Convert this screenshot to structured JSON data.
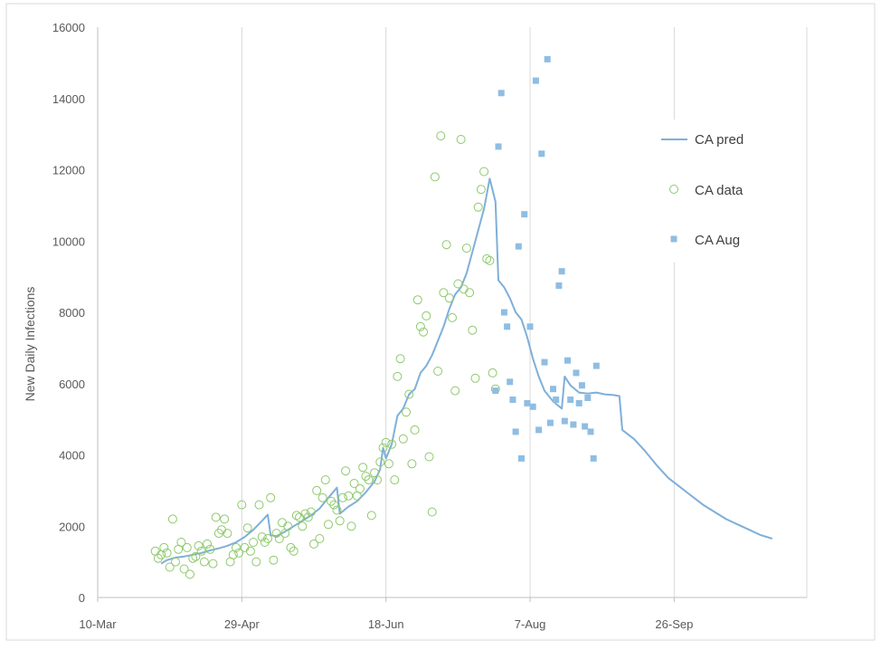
{
  "chart_data": {
    "type": "line+scatter",
    "title": "",
    "xlabel": "",
    "ylabel": "New Daily Infections",
    "xlim": [
      "2020-03-10",
      "2020-11-11"
    ],
    "ylim": [
      0,
      16000
    ],
    "x_tick_labels": [
      "10-Mar",
      "29-Apr",
      "18-Jun",
      "7-Aug",
      "26-Sep"
    ],
    "x_tick_dates": [
      "2020-03-10",
      "2020-04-29",
      "2020-06-18",
      "2020-08-07",
      "2020-09-26"
    ],
    "y_ticks": [
      0,
      2000,
      4000,
      6000,
      8000,
      10000,
      12000,
      14000,
      16000
    ],
    "grid": "vertical",
    "legend_position": "right",
    "colors": {
      "pred": "#7fafd9",
      "data": "#8dc96b",
      "aug": "#8fbde3"
    },
    "series": [
      {
        "name": "CA pred",
        "kind": "line",
        "points": [
          [
            "2020-04-01",
            950
          ],
          [
            "2020-04-03",
            1050
          ],
          [
            "2020-04-06",
            1120
          ],
          [
            "2020-04-09",
            1150
          ],
          [
            "2020-04-12",
            1200
          ],
          [
            "2020-04-15",
            1250
          ],
          [
            "2020-04-18",
            1320
          ],
          [
            "2020-04-21",
            1380
          ],
          [
            "2020-04-24",
            1450
          ],
          [
            "2020-04-27",
            1550
          ],
          [
            "2020-04-30",
            1700
          ],
          [
            "2020-05-03",
            1900
          ],
          [
            "2020-05-06",
            2150
          ],
          [
            "2020-05-08",
            2320
          ],
          [
            "2020-05-09",
            1750
          ],
          [
            "2020-05-11",
            1720
          ],
          [
            "2020-05-14",
            1850
          ],
          [
            "2020-05-17",
            2000
          ],
          [
            "2020-05-20",
            2150
          ],
          [
            "2020-05-23",
            2300
          ],
          [
            "2020-05-26",
            2500
          ],
          [
            "2020-05-29",
            2800
          ],
          [
            "2020-06-01",
            3080
          ],
          [
            "2020-06-02",
            2350
          ],
          [
            "2020-06-05",
            2550
          ],
          [
            "2020-06-08",
            2700
          ],
          [
            "2020-06-11",
            2950
          ],
          [
            "2020-06-14",
            3250
          ],
          [
            "2020-06-16",
            3600
          ],
          [
            "2020-06-17",
            4200
          ],
          [
            "2020-06-18",
            3900
          ],
          [
            "2020-06-20",
            4300
          ],
          [
            "2020-06-22",
            5100
          ],
          [
            "2020-06-24",
            5300
          ],
          [
            "2020-06-26",
            5700
          ],
          [
            "2020-06-28",
            5850
          ],
          [
            "2020-06-30",
            6300
          ],
          [
            "2020-07-02",
            6500
          ],
          [
            "2020-07-04",
            6800
          ],
          [
            "2020-07-06",
            7200
          ],
          [
            "2020-07-08",
            7600
          ],
          [
            "2020-07-10",
            8100
          ],
          [
            "2020-07-12",
            8500
          ],
          [
            "2020-07-14",
            8700
          ],
          [
            "2020-07-16",
            9100
          ],
          [
            "2020-07-18",
            9700
          ],
          [
            "2020-07-20",
            10300
          ],
          [
            "2020-07-22",
            10900
          ],
          [
            "2020-07-24",
            11750
          ],
          [
            "2020-07-26",
            11100
          ],
          [
            "2020-07-27",
            8900
          ],
          [
            "2020-07-29",
            8700
          ],
          [
            "2020-07-31",
            8400
          ],
          [
            "2020-08-02",
            8000
          ],
          [
            "2020-08-04",
            7800
          ],
          [
            "2020-08-06",
            7300
          ],
          [
            "2020-08-08",
            6700
          ],
          [
            "2020-08-10",
            6200
          ],
          [
            "2020-08-12",
            5800
          ],
          [
            "2020-08-15",
            5500
          ],
          [
            "2020-08-18",
            5300
          ],
          [
            "2020-08-19",
            6200
          ],
          [
            "2020-08-21",
            5950
          ],
          [
            "2020-08-24",
            5750
          ],
          [
            "2020-08-27",
            5720
          ],
          [
            "2020-08-30",
            5750
          ],
          [
            "2020-09-02",
            5700
          ],
          [
            "2020-09-05",
            5680
          ],
          [
            "2020-09-07",
            5650
          ],
          [
            "2020-09-08",
            4700
          ],
          [
            "2020-09-12",
            4450
          ],
          [
            "2020-09-16",
            4100
          ],
          [
            "2020-09-20",
            3700
          ],
          [
            "2020-09-24",
            3350
          ],
          [
            "2020-09-28",
            3100
          ],
          [
            "2020-10-02",
            2850
          ],
          [
            "2020-10-06",
            2600
          ],
          [
            "2020-10-10",
            2400
          ],
          [
            "2020-10-14",
            2200
          ],
          [
            "2020-10-18",
            2050
          ],
          [
            "2020-10-22",
            1900
          ],
          [
            "2020-10-26",
            1750
          ],
          [
            "2020-10-30",
            1650
          ]
        ]
      },
      {
        "name": "CA data",
        "kind": "scatter-circle",
        "points": [
          [
            "2020-03-30",
            1300
          ],
          [
            "2020-03-31",
            1100
          ],
          [
            "2020-04-01",
            1200
          ],
          [
            "2020-04-02",
            1400
          ],
          [
            "2020-04-03",
            1250
          ],
          [
            "2020-04-04",
            850
          ],
          [
            "2020-04-05",
            2200
          ],
          [
            "2020-04-06",
            1000
          ],
          [
            "2020-04-07",
            1350
          ],
          [
            "2020-04-08",
            1550
          ],
          [
            "2020-04-09",
            800
          ],
          [
            "2020-04-10",
            1400
          ],
          [
            "2020-04-11",
            650
          ],
          [
            "2020-04-12",
            1100
          ],
          [
            "2020-04-13",
            1150
          ],
          [
            "2020-04-14",
            1450
          ],
          [
            "2020-04-15",
            1300
          ],
          [
            "2020-04-16",
            1000
          ],
          [
            "2020-04-17",
            1500
          ],
          [
            "2020-04-18",
            1350
          ],
          [
            "2020-04-19",
            950
          ],
          [
            "2020-04-20",
            2250
          ],
          [
            "2020-04-21",
            1800
          ],
          [
            "2020-04-22",
            1900
          ],
          [
            "2020-04-23",
            2200
          ],
          [
            "2020-04-24",
            1800
          ],
          [
            "2020-04-25",
            1000
          ],
          [
            "2020-04-26",
            1200
          ],
          [
            "2020-04-27",
            1400
          ],
          [
            "2020-04-28",
            1250
          ],
          [
            "2020-04-29",
            2600
          ],
          [
            "2020-04-30",
            1400
          ],
          [
            "2020-05-01",
            1950
          ],
          [
            "2020-05-02",
            1300
          ],
          [
            "2020-05-03",
            1550
          ],
          [
            "2020-05-04",
            1000
          ],
          [
            "2020-05-05",
            2600
          ],
          [
            "2020-05-06",
            1700
          ],
          [
            "2020-05-07",
            1550
          ],
          [
            "2020-05-08",
            1650
          ],
          [
            "2020-05-09",
            2800
          ],
          [
            "2020-05-10",
            1050
          ],
          [
            "2020-05-11",
            1800
          ],
          [
            "2020-05-12",
            1650
          ],
          [
            "2020-05-13",
            2100
          ],
          [
            "2020-05-14",
            1800
          ],
          [
            "2020-05-15",
            2000
          ],
          [
            "2020-05-16",
            1400
          ],
          [
            "2020-05-17",
            1300
          ],
          [
            "2020-05-18",
            2300
          ],
          [
            "2020-05-19",
            2250
          ],
          [
            "2020-05-20",
            2000
          ],
          [
            "2020-05-21",
            2350
          ],
          [
            "2020-05-22",
            2250
          ],
          [
            "2020-05-23",
            2400
          ],
          [
            "2020-05-24",
            1500
          ],
          [
            "2020-05-25",
            3000
          ],
          [
            "2020-05-26",
            1650
          ],
          [
            "2020-05-27",
            2800
          ],
          [
            "2020-05-28",
            3300
          ],
          [
            "2020-05-29",
            2050
          ],
          [
            "2020-05-30",
            2700
          ],
          [
            "2020-05-31",
            2600
          ],
          [
            "2020-06-01",
            2450
          ],
          [
            "2020-06-02",
            2150
          ],
          [
            "2020-06-03",
            2800
          ],
          [
            "2020-06-04",
            3550
          ],
          [
            "2020-06-05",
            2850
          ],
          [
            "2020-06-06",
            2000
          ],
          [
            "2020-06-07",
            3200
          ],
          [
            "2020-06-08",
            2850
          ],
          [
            "2020-06-09",
            3050
          ],
          [
            "2020-06-10",
            3650
          ],
          [
            "2020-06-11",
            3400
          ],
          [
            "2020-06-12",
            3300
          ],
          [
            "2020-06-13",
            2300
          ],
          [
            "2020-06-14",
            3500
          ],
          [
            "2020-06-15",
            3300
          ],
          [
            "2020-06-16",
            3800
          ],
          [
            "2020-06-17",
            4200
          ],
          [
            "2020-06-18",
            4350
          ],
          [
            "2020-06-19",
            3750
          ],
          [
            "2020-06-20",
            4300
          ],
          [
            "2020-06-21",
            3300
          ],
          [
            "2020-06-22",
            6200
          ],
          [
            "2020-06-23",
            6700
          ],
          [
            "2020-06-24",
            4450
          ],
          [
            "2020-06-25",
            5200
          ],
          [
            "2020-06-26",
            5700
          ],
          [
            "2020-06-27",
            3750
          ],
          [
            "2020-06-28",
            4700
          ],
          [
            "2020-06-29",
            8350
          ],
          [
            "2020-06-30",
            7600
          ],
          [
            "2020-07-01",
            7450
          ],
          [
            "2020-07-02",
            7900
          ],
          [
            "2020-07-03",
            3950
          ],
          [
            "2020-07-04",
            2400
          ],
          [
            "2020-07-05",
            11800
          ],
          [
            "2020-07-06",
            6350
          ],
          [
            "2020-07-07",
            12950
          ],
          [
            "2020-07-08",
            8550
          ],
          [
            "2020-07-09",
            9900
          ],
          [
            "2020-07-10",
            8400
          ],
          [
            "2020-07-11",
            7850
          ],
          [
            "2020-07-12",
            5800
          ],
          [
            "2020-07-13",
            8800
          ],
          [
            "2020-07-14",
            12850
          ],
          [
            "2020-07-15",
            8650
          ],
          [
            "2020-07-16",
            9800
          ],
          [
            "2020-07-17",
            8550
          ],
          [
            "2020-07-18",
            7500
          ],
          [
            "2020-07-19",
            6150
          ],
          [
            "2020-07-20",
            10950
          ],
          [
            "2020-07-21",
            11450
          ],
          [
            "2020-07-22",
            11950
          ],
          [
            "2020-07-23",
            9500
          ],
          [
            "2020-07-24",
            9450
          ],
          [
            "2020-07-25",
            6300
          ],
          [
            "2020-07-26",
            5850
          ]
        ]
      },
      {
        "name": "CA Aug",
        "kind": "scatter-square",
        "points": [
          [
            "2020-07-26",
            5800
          ],
          [
            "2020-07-27",
            12650
          ],
          [
            "2020-07-28",
            14150
          ],
          [
            "2020-07-29",
            8000
          ],
          [
            "2020-07-30",
            7600
          ],
          [
            "2020-07-31",
            6050
          ],
          [
            "2020-08-01",
            5550
          ],
          [
            "2020-08-02",
            4650
          ],
          [
            "2020-08-03",
            9850
          ],
          [
            "2020-08-04",
            3900
          ],
          [
            "2020-08-05",
            10750
          ],
          [
            "2020-08-06",
            5450
          ],
          [
            "2020-08-07",
            7600
          ],
          [
            "2020-08-08",
            5350
          ],
          [
            "2020-08-09",
            14500
          ],
          [
            "2020-08-10",
            4700
          ],
          [
            "2020-08-11",
            12450
          ],
          [
            "2020-08-12",
            6600
          ],
          [
            "2020-08-13",
            15100
          ],
          [
            "2020-08-14",
            4900
          ],
          [
            "2020-08-15",
            5850
          ],
          [
            "2020-08-16",
            5550
          ],
          [
            "2020-08-17",
            8750
          ],
          [
            "2020-08-18",
            9150
          ],
          [
            "2020-08-19",
            4950
          ],
          [
            "2020-08-20",
            6650
          ],
          [
            "2020-08-21",
            5550
          ],
          [
            "2020-08-22",
            4850
          ],
          [
            "2020-08-23",
            6300
          ],
          [
            "2020-08-24",
            5450
          ],
          [
            "2020-08-25",
            5950
          ],
          [
            "2020-08-26",
            4800
          ],
          [
            "2020-08-27",
            5600
          ],
          [
            "2020-08-28",
            4650
          ],
          [
            "2020-08-29",
            3900
          ],
          [
            "2020-08-30",
            6500
          ]
        ]
      }
    ]
  }
}
